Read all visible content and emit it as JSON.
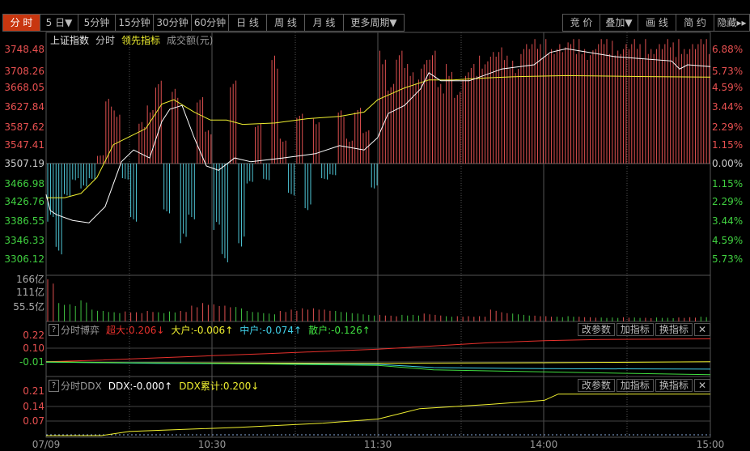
{
  "toolbar": {
    "tabs": [
      {
        "label": "分 时",
        "active": true
      },
      {
        "label": "5 日▼"
      },
      {
        "label": "5分钟"
      },
      {
        "label": "15分钟"
      },
      {
        "label": "30分钟"
      },
      {
        "label": "60分钟"
      },
      {
        "label": "日 线"
      },
      {
        "label": "周 线"
      },
      {
        "label": "月 线"
      },
      {
        "label": "更多周期▼"
      }
    ],
    "right_buttons": [
      "竞 价",
      "叠加▼",
      "画 线",
      "简 约",
      "隐藏▸▸"
    ]
  },
  "main_legend": {
    "index": "上证指数",
    "mode": "分时",
    "leading": "领先指标",
    "amount": "成交额(元)"
  },
  "price_axis": [
    "3748.48",
    "3708.26",
    "3668.05",
    "3627.84",
    "3587.62",
    "3547.41",
    "3507.19",
    "3466.98",
    "3426.76",
    "3386.55",
    "3346.33",
    "3306.12"
  ],
  "pct_axis": [
    "6.88%",
    "5.73%",
    "4.59%",
    "3.44%",
    "2.29%",
    "1.15%",
    "0.00%",
    "1.15%",
    "2.29%",
    "3.44%",
    "4.59%",
    "5.73%"
  ],
  "volume_axis": [
    "166亿",
    "111亿",
    "55.5亿"
  ],
  "time_axis": [
    "07/09",
    "10:30",
    "11:30",
    "14:00",
    "15:00"
  ],
  "panel_buttons": {
    "params": "改参数",
    "add": "加指标",
    "swap": "换指标",
    "close": "✕",
    "help": "?"
  },
  "game_panel": {
    "title": "分时博弈",
    "items": [
      {
        "label": "超大:0.206↓",
        "color": "#e8312c"
      },
      {
        "label": "大户:-0.006↑",
        "color": "#f0f030"
      },
      {
        "label": "中户:-0.074↑",
        "color": "#40d0e8"
      },
      {
        "label": "散户:-0.126↑",
        "color": "#40e040"
      }
    ],
    "axis": [
      "0.22",
      "0.10",
      "-0.01"
    ]
  },
  "ddx_panel": {
    "title": "分时DDX",
    "items": [
      {
        "label": "DDX:-0.000↑",
        "color": "#ffffff"
      },
      {
        "label": "DDX累计:0.200↓",
        "color": "#f0f030"
      }
    ],
    "axis": [
      "0.21",
      "0.14",
      "0.07"
    ]
  },
  "colors": {
    "up": "#e05050",
    "down": "#50c8d8",
    "price_line": "#ffffff",
    "leading_line": "#f0f030",
    "grid": "#4a4a4a"
  },
  "chart_data": {
    "type": "line",
    "x_unit": "minutes since 09:30 (trading minutes)",
    "price_range": [
      3306.12,
      3748.48
    ],
    "base_price": 3507.19,
    "price_series": {
      "x": [
        0,
        1.5,
        3.8,
        9.6,
        15.5,
        21.3,
        27.2,
        31.6,
        37.4,
        41.8,
        44.7,
        49.1,
        53.5,
        57.9,
        62.3,
        68.1,
        74,
        85.6,
        97.3,
        106,
        114.9,
        119.8,
        123.6,
        129.5,
        135.3,
        138.3,
        142.6,
        152.9,
        164.6,
        176.3,
        182.1,
        188,
        205.5,
        226,
        228.9,
        231.8,
        240
      ],
      "y": [
        3442,
        3408,
        3399,
        3387,
        3382,
        3416,
        3511,
        3536,
        3519,
        3596,
        3622,
        3630,
        3562,
        3502,
        3493,
        3519,
        3511,
        3519,
        3528,
        3545,
        3536,
        3562,
        3613,
        3630,
        3665,
        3699,
        3682,
        3682,
        3707,
        3716,
        3742,
        3750,
        3733,
        3724,
        3707,
        3716,
        3712
      ]
    },
    "leading_series": {
      "x": [
        0,
        6.7,
        12.6,
        18.4,
        24.3,
        30.1,
        36,
        41.8,
        46.2,
        53.5,
        59.4,
        65.2,
        71,
        82.7,
        94.4,
        106,
        114.9,
        119.8,
        129.5,
        138.3,
        147,
        158.8,
        170.5,
        188,
        217,
        240
      ],
      "y": [
        3435,
        3435,
        3444,
        3478,
        3547,
        3564,
        3581,
        3633,
        3642,
        3616,
        3599,
        3599,
        3590,
        3593,
        3602,
        3607,
        3616,
        3642,
        3667,
        3684,
        3684,
        3688,
        3691,
        3693,
        3691,
        3690
      ]
    },
    "flow_bars_pct": [
      -3.5,
      -5.7,
      -2,
      -1,
      -1.5,
      -1,
      0.5,
      3.9,
      3.2,
      -1,
      -3.5,
      2.5,
      3.5,
      5.2,
      -3,
      4.5,
      -4.8,
      -3.5,
      4,
      2,
      -4,
      -6.2,
      5,
      -5,
      -1.2,
      2.5,
      -1,
      6.5,
      1.5,
      -2,
      3,
      -2.8,
      2.7,
      -1,
      -0.7,
      3.2,
      1.5,
      3.5,
      2,
      -1.5,
      6.8,
      5,
      6.8,
      6,
      5.5,
      6.5,
      6.8,
      4.8,
      6,
      4.5,
      5.5,
      6,
      6.5,
      7,
      7,
      6.5,
      6.2,
      7.5,
      7.5,
      7.2,
      7.5,
      7.5,
      7.3,
      7.5,
      7.5,
      7.1,
      7.5,
      7.5,
      7.4,
      7.5,
      7.5,
      7.2,
      7.5,
      7.5,
      7.5,
      7.3,
      7.5,
      7.5,
      7.5,
      7.5
    ],
    "volume_yi": [
      160,
      70,
      65,
      80,
      45,
      40,
      35,
      38,
      35,
      40,
      35,
      38,
      40,
      60,
      70,
      65,
      60,
      55,
      40,
      35,
      30,
      40,
      45,
      50,
      50,
      45,
      40,
      35,
      30,
      25,
      25,
      22,
      25,
      25,
      30,
      25,
      20,
      20,
      20,
      20,
      45,
      35,
      30,
      25,
      22,
      20,
      18,
      20,
      18,
      16,
      15,
      15,
      16,
      15,
      14,
      15,
      14,
      15,
      16,
      18
    ],
    "volume_up": [
      1,
      0,
      0,
      0,
      0,
      0,
      0,
      1,
      1,
      1,
      0,
      0,
      1,
      1,
      1,
      1,
      1,
      0,
      0,
      0,
      0,
      1,
      1,
      1,
      1,
      1,
      0,
      0,
      0,
      0,
      1,
      1,
      0,
      0,
      1,
      1,
      0,
      1,
      1,
      1,
      1,
      1,
      0,
      0,
      1,
      1,
      0,
      0,
      1,
      1,
      0,
      0,
      1,
      0,
      1,
      0,
      0,
      1,
      1,
      0
    ],
    "game_series": [
      {
        "name": "超大",
        "color": "#e8312c",
        "x": [
          0,
          20,
          40,
          60,
          80,
          100,
          120,
          140,
          160,
          180,
          200,
          240
        ],
        "y": [
          -0.005,
          0.01,
          0.03,
          0.05,
          0.07,
          0.09,
          0.11,
          0.14,
          0.17,
          0.19,
          0.2,
          0.206
        ]
      },
      {
        "name": "大户",
        "color": "#f0f030",
        "x": [
          0,
          30,
          120,
          180,
          240
        ],
        "y": [
          -0.005,
          -0.015,
          -0.02,
          -0.015,
          -0.006
        ]
      },
      {
        "name": "中户",
        "color": "#40d0e8",
        "x": [
          0,
          40,
          120,
          140,
          180,
          240
        ],
        "y": [
          -0.01,
          -0.02,
          -0.03,
          -0.06,
          -0.07,
          -0.074
        ]
      },
      {
        "name": "散户",
        "color": "#40e040",
        "x": [
          0,
          60,
          120,
          140,
          180,
          240
        ],
        "y": [
          -0.01,
          -0.02,
          -0.04,
          -0.08,
          -0.1,
          -0.126
        ]
      }
    ],
    "ddx_series": {
      "name": "DDX累计",
      "color": "#f0f030",
      "x": [
        0,
        20,
        30,
        50,
        70,
        100,
        120,
        135,
        160,
        180,
        185,
        240
      ],
      "y": [
        0,
        0,
        0.02,
        0.03,
        0.04,
        0.06,
        0.08,
        0.13,
        0.15,
        0.17,
        0.2,
        0.2
      ]
    }
  }
}
